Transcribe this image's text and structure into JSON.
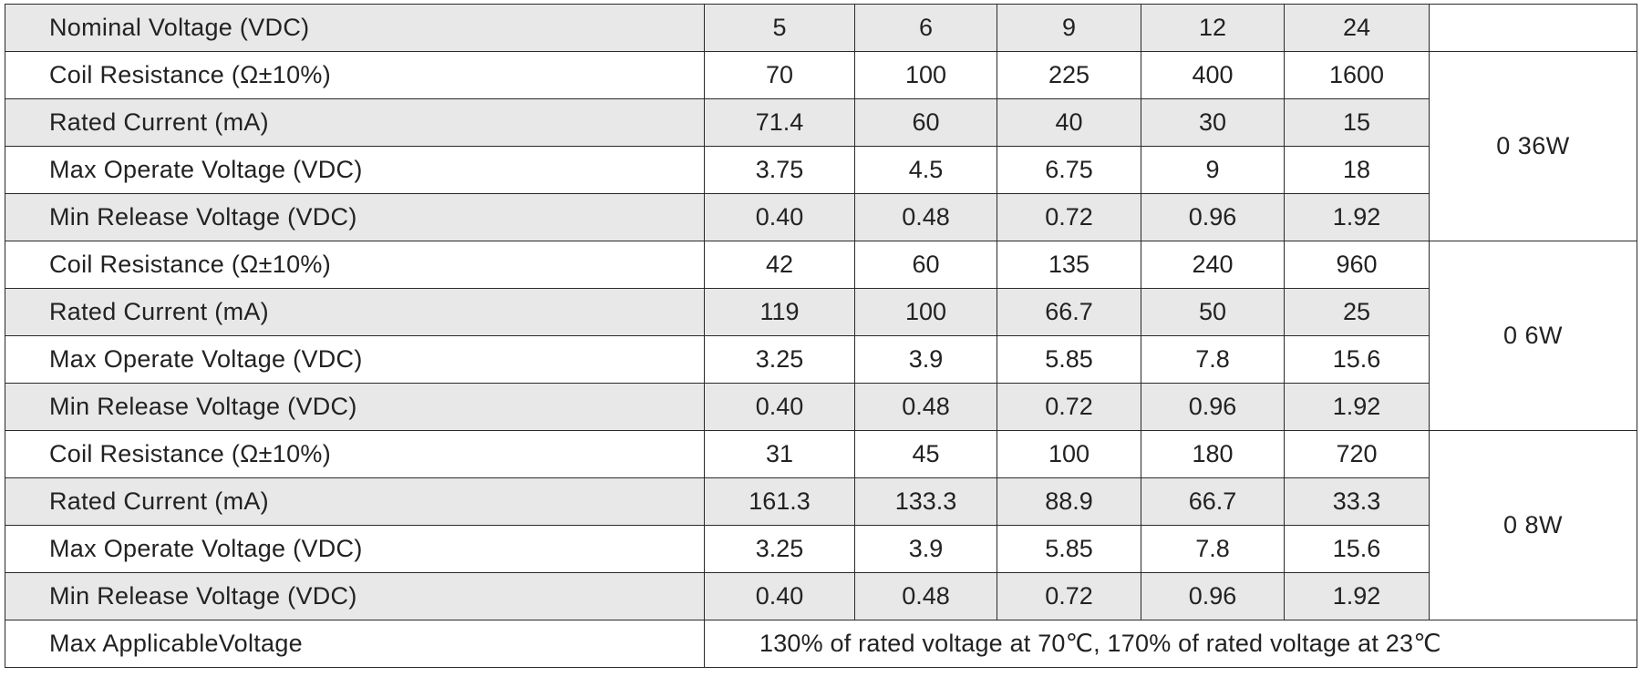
{
  "header": {
    "label": "Nominal Voltage (VDC)",
    "voltages": [
      "5",
      "6",
      "9",
      "12",
      "24"
    ]
  },
  "groups": [
    {
      "power": "0 36W",
      "rows": [
        {
          "label": "Coil Resistance (Ω±10%)",
          "values": [
            "70",
            "100",
            "225",
            "400",
            "1600"
          ]
        },
        {
          "label": "Rated Current  (mA)",
          "values": [
            "71.4",
            "60",
            "40",
            "30",
            "15"
          ]
        },
        {
          "label": "Max Operate Voltage (VDC)",
          "values": [
            "3.75",
            "4.5",
            "6.75",
            "9",
            "18"
          ]
        },
        {
          "label": "Min  Release Voltage (VDC)",
          "values": [
            "0.40",
            "0.48",
            "0.72",
            "0.96",
            "1.92"
          ]
        }
      ]
    },
    {
      "power": "0 6W",
      "rows": [
        {
          "label": "Coil Resistance (Ω±10%)",
          "values": [
            "42",
            "60",
            "135",
            "240",
            "960"
          ]
        },
        {
          "label": "Rated Current  (mA)",
          "values": [
            "119",
            "100",
            "66.7",
            "50",
            "25"
          ]
        },
        {
          "label": "Max Operate Voltage (VDC)",
          "values": [
            "3.25",
            "3.9",
            "5.85",
            "7.8",
            "15.6"
          ]
        },
        {
          "label": "Min  Release Voltage (VDC)",
          "values": [
            "0.40",
            "0.48",
            "0.72",
            "0.96",
            "1.92"
          ]
        }
      ]
    },
    {
      "power": "0 8W",
      "rows": [
        {
          "label": "Coil Resistance (Ω±10%)",
          "values": [
            "31",
            "45",
            "100",
            "180",
            "720"
          ]
        },
        {
          "label": "Rated Current  (mA)",
          "values": [
            "161.3",
            "133.3",
            "88.9",
            "66.7",
            "33.3"
          ]
        },
        {
          "label": "Max Operate Voltage (VDC)",
          "values": [
            "3.25",
            "3.9",
            "5.85",
            "7.8",
            "15.6"
          ]
        },
        {
          "label": "Min Release Voltage (VDC)",
          "values": [
            "0.40",
            "0.48",
            "0.72",
            "0.96",
            "1.92"
          ]
        }
      ]
    }
  ],
  "footer": {
    "label": "Max ApplicableVoltage",
    "note": "130% of rated voltage at 70℃, 170% of rated voltage at 23℃"
  }
}
